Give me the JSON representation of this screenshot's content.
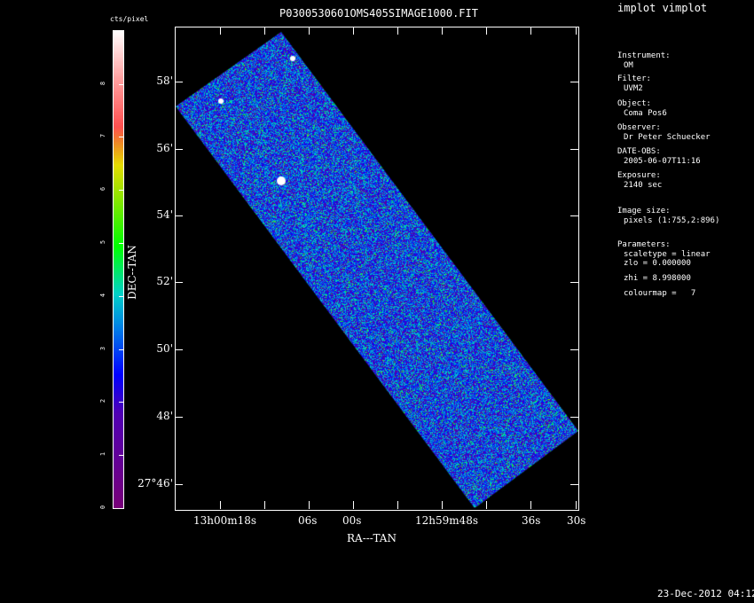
{
  "window_title": "implot vimplot",
  "plot_title": "P0300530601OMS405SIMAGE1000.FIT",
  "colorbar": {
    "label": "cts/pixel",
    "ticks": [
      "0",
      "1",
      "2",
      "3",
      "4",
      "5",
      "6",
      "7",
      "8"
    ],
    "range": [
      0,
      8.998
    ]
  },
  "axes": {
    "xlabel": "RA---TAN",
    "ylabel": "DEC--TAN",
    "xticks": [
      "13h00m18s",
      "06s",
      "00s",
      "12h59m48s",
      "36s",
      "30s"
    ],
    "yticks": [
      "58'",
      "56'",
      "54'",
      "52'",
      "50'",
      "48'",
      "27°46'"
    ]
  },
  "info": [
    {
      "label": "Instrument:",
      "value": "OM"
    },
    {
      "label": "Filter:",
      "value": "UVM2"
    },
    {
      "label": "Object:",
      "value": "Coma Pos6"
    },
    {
      "label": "Observer:",
      "value": "Dr Peter Schuecker"
    },
    {
      "label": "DATE-OBS:",
      "value": "2005-06-07T11:16"
    },
    {
      "label": "Exposure:",
      "value": "2140 sec"
    },
    {
      "label": "Image size:",
      "value": "pixels (1:755,2:896)"
    },
    {
      "label": "Parameters:",
      "value": "scaletype = linear"
    },
    {
      "label": "",
      "value": "zlo = 0.000000"
    },
    {
      "label": "",
      "value": "zhi = 8.998000"
    },
    {
      "label": "",
      "value": "colourmap =   7"
    }
  ],
  "timestamp": "23-Dec-2012 04:12"
}
